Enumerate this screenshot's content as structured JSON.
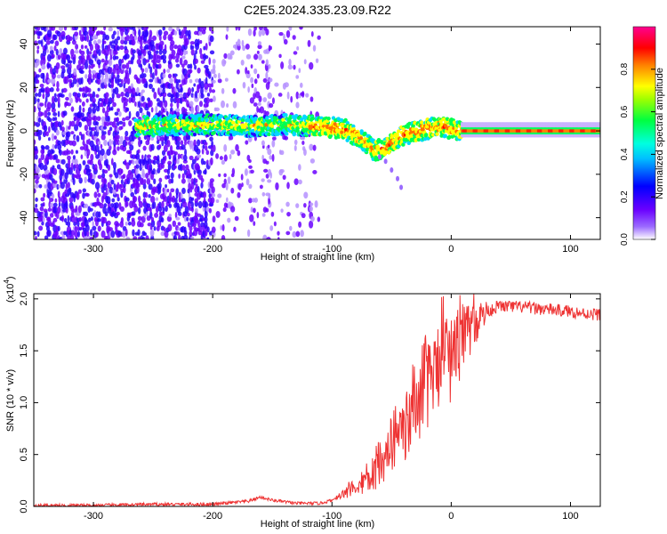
{
  "figure_title": "C2E5.2024.335.23.09.R22",
  "chart_data": [
    {
      "type": "heatmap",
      "xlabel": "Height of straight line (km)",
      "ylabel": "Frequency (Hz)",
      "xlim": [
        -350,
        125
      ],
      "ylim": [
        -50,
        48
      ],
      "x_ticks": [
        -300,
        -200,
        -100,
        0,
        100
      ],
      "x_tick_labels": [
        "-300",
        "-200",
        "-100",
        "0",
        "100"
      ],
      "y_ticks": [
        -40,
        -20,
        0,
        20,
        40
      ],
      "y_tick_labels": [
        "-40",
        "-20",
        "0",
        "20",
        "40"
      ],
      "colorbar": {
        "label": "Normalized spectral amplitude",
        "range": [
          0,
          1
        ],
        "ticks": [
          0.0,
          0.2,
          0.4,
          0.6,
          0.8
        ],
        "tick_labels": [
          "0.0",
          "0.2",
          "0.4",
          "0.6",
          "0.8"
        ],
        "colors": [
          "#ffffff",
          "#6a00ff",
          "#0000ff",
          "#00e5ff",
          "#00ff40",
          "#ffff00",
          "#ff8000",
          "#ff0000",
          "#ff00a0"
        ]
      },
      "center_frequency_track": [
        {
          "x": -265,
          "y": 2
        },
        {
          "x": -230,
          "y": 2.5
        },
        {
          "x": -200,
          "y": 3
        },
        {
          "x": -170,
          "y": 2
        },
        {
          "x": -140,
          "y": 3
        },
        {
          "x": -110,
          "y": 2
        },
        {
          "x": -90,
          "y": 1
        },
        {
          "x": -75,
          "y": -4
        },
        {
          "x": -65,
          "y": -9
        },
        {
          "x": -55,
          "y": -8
        },
        {
          "x": -45,
          "y": -3
        },
        {
          "x": -35,
          "y": -1
        },
        {
          "x": -20,
          "y": 1
        },
        {
          "x": -10,
          "y": 2
        },
        {
          "x": 0,
          "y": 1
        },
        {
          "x": 10,
          "y": 0
        },
        {
          "x": 125,
          "y": 0
        }
      ]
    },
    {
      "type": "line",
      "xlabel": "Height of straight line (km)",
      "ylabel": "SNR (10 * v/v)",
      "y_scale_label": "(x10",
      "y_scale_exponent": "4",
      "y_scale_close": ")",
      "xlim": [
        -350,
        125
      ],
      "ylim": [
        0,
        2.05
      ],
      "x_ticks": [
        -300,
        -200,
        -100,
        0,
        100
      ],
      "x_tick_labels": [
        "-300",
        "-200",
        "-100",
        "0",
        "100"
      ],
      "y_ticks": [
        0.0,
        0.5,
        1.0,
        1.5,
        2.0
      ],
      "y_tick_labels": [
        "0.0",
        "0.5",
        "1.0",
        "1.5",
        "2.0"
      ],
      "line_color": "#ee3333",
      "series": [
        {
          "x": [
            -350,
            -300,
            -250,
            -200,
            -170,
            -160,
            -150,
            -130,
            -110,
            -100,
            -90,
            -80,
            -70,
            -60,
            -50,
            -40,
            -30,
            -20,
            -10,
            0,
            10,
            20,
            30,
            40,
            60,
            80,
            100,
            110,
            125
          ],
          "values": [
            0.01,
            0.01,
            0.02,
            0.02,
            0.05,
            0.09,
            0.06,
            0.03,
            0.03,
            0.06,
            0.12,
            0.2,
            0.28,
            0.38,
            0.52,
            0.72,
            0.95,
            1.15,
            1.35,
            1.45,
            1.62,
            1.78,
            1.88,
            1.93,
            1.92,
            1.9,
            1.88,
            1.86,
            1.85
          ]
        }
      ]
    }
  ]
}
